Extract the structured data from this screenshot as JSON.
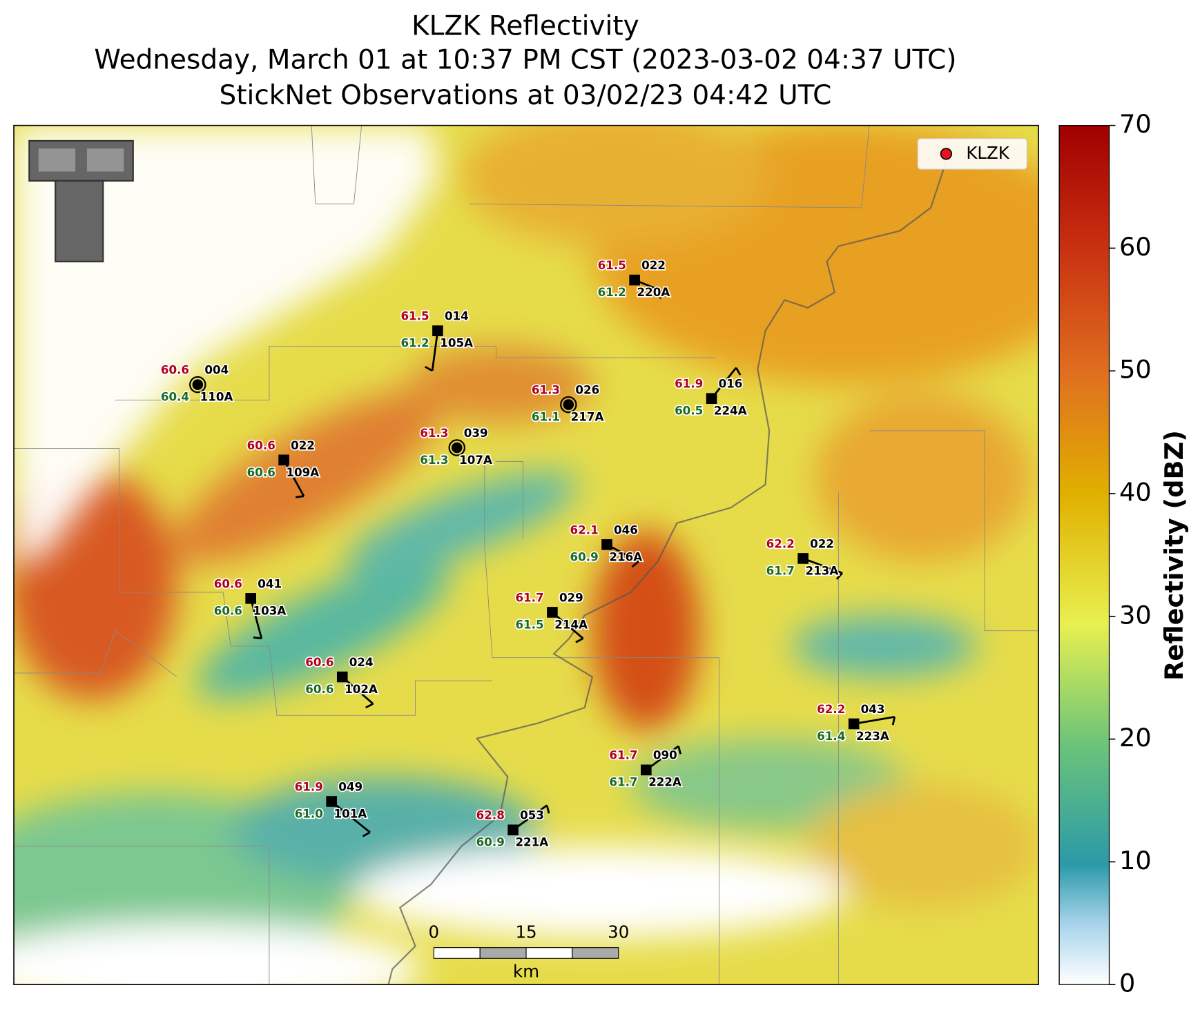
{
  "title": [
    "KLZK Reflectivity",
    "Wednesday, March 01 at 10:37 PM CST (2023-03-02 04:37 UTC)",
    "StickNet Observations at 03/02/23 04:42 UTC"
  ],
  "legend": {
    "label": "KLZK",
    "color": "#e8141c"
  },
  "colorbar": {
    "label": "Reflectivity (dBZ)",
    "lim": [
      0,
      70
    ],
    "ticks": [
      0,
      10,
      20,
      30,
      40,
      50,
      60,
      70
    ]
  },
  "scalebar": {
    "ticks": [
      0,
      15,
      30
    ],
    "unit": "km"
  },
  "stations": [
    {
      "temp": "60.6",
      "dewpoint": "60.4",
      "code": "004",
      "id": "110A"
    },
    {
      "temp": "61.5",
      "dewpoint": "61.2",
      "code": "014",
      "id": "105A"
    },
    {
      "temp": "61.5",
      "dewpoint": "61.2",
      "code": "022",
      "id": "220A"
    },
    {
      "temp": "61.3",
      "dewpoint": "61.1",
      "code": "026",
      "id": "217A"
    },
    {
      "temp": "61.9",
      "dewpoint": "60.5",
      "code": "016",
      "id": "224A"
    },
    {
      "temp": "61.3",
      "dewpoint": "61.3",
      "code": "039",
      "id": "107A"
    },
    {
      "temp": "60.6",
      "dewpoint": "60.6",
      "code": "022",
      "id": "109A"
    },
    {
      "temp": "62.1",
      "dewpoint": "60.9",
      "code": "046",
      "id": "216A"
    },
    {
      "temp": "62.2",
      "dewpoint": "61.7",
      "code": "022",
      "id": "213A"
    },
    {
      "temp": "60.6",
      "dewpoint": "60.6",
      "code": "041",
      "id": "103A"
    },
    {
      "temp": "61.7",
      "dewpoint": "61.5",
      "code": "029",
      "id": "214A"
    },
    {
      "temp": "60.6",
      "dewpoint": "60.6",
      "code": "024",
      "id": "102A"
    },
    {
      "temp": "62.2",
      "dewpoint": "61.4",
      "code": "043",
      "id": "223A"
    },
    {
      "temp": "61.7",
      "dewpoint": "61.7",
      "code": "090",
      "id": "222A"
    },
    {
      "temp": "61.9",
      "dewpoint": "61.0",
      "code": "049",
      "id": "101A"
    },
    {
      "temp": "62.8",
      "dewpoint": "60.9",
      "code": "053",
      "id": "221A"
    }
  ]
}
